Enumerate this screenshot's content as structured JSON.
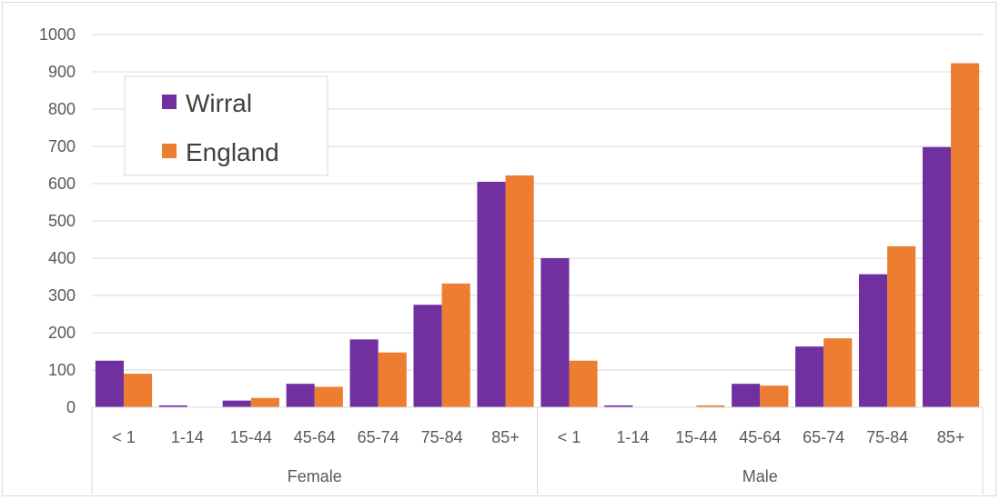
{
  "chart_data": {
    "type": "bar",
    "title": "",
    "xlabel": "",
    "ylabel": "",
    "ylim": [
      0,
      1000
    ],
    "yticks": [
      "0",
      "100",
      "200",
      "300",
      "400",
      "500",
      "600",
      "700",
      "800",
      "900",
      "1000"
    ],
    "grid": true,
    "legend_position": "top-left",
    "groups": [
      {
        "label": "Female",
        "categories": [
          "< 1",
          "1-14",
          "15-44",
          "45-64",
          "65-74",
          "75-84",
          "85+"
        ]
      },
      {
        "label": "Male",
        "categories": [
          "< 1",
          "1-14",
          "15-44",
          "45-64",
          "65-74",
          "75-84",
          "85+"
        ]
      }
    ],
    "series": [
      {
        "name": "Wirral",
        "color": "#7030a0",
        "values": [
          125,
          5,
          18,
          63,
          182,
          275,
          605,
          400,
          5,
          0,
          63,
          163,
          357,
          698
        ]
      },
      {
        "name": "England",
        "color": "#ed7d31",
        "values": [
          90,
          0,
          25,
          55,
          147,
          332,
          622,
          125,
          0,
          5,
          58,
          185,
          432,
          923
        ]
      }
    ]
  }
}
